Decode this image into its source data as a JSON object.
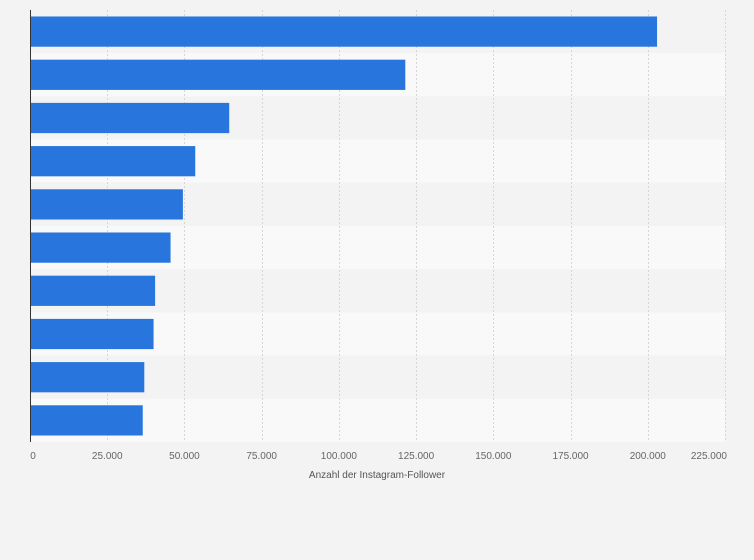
{
  "chart_data": {
    "type": "bar",
    "orientation": "horizontal",
    "title": "",
    "xlabel": "Anzahl der Instagram-Follower",
    "ylabel": "",
    "xlim": [
      0,
      225000
    ],
    "x_ticks": [
      0,
      25000,
      50000,
      75000,
      100000,
      125000,
      150000,
      175000,
      200000,
      225000
    ],
    "x_tick_labels": [
      "0",
      "25.000",
      "50.000",
      "75.000",
      "100.000",
      "125.000",
      "150.000",
      "175.000",
      "200.000",
      "225.000"
    ],
    "categories": [
      "",
      "",
      "",
      "",
      "",
      "",
      "",
      "",
      "",
      ""
    ],
    "values": [
      203000,
      121500,
      64500,
      53500,
      49500,
      45500,
      40500,
      40000,
      37000,
      36500
    ],
    "grid": true,
    "legend": "none",
    "colors": {
      "bar": "#2876dd",
      "band_light": "#f3f3f3",
      "band_dark": "#f9f9f9",
      "grid": "#d6d6d6",
      "axis": "#333333"
    }
  }
}
